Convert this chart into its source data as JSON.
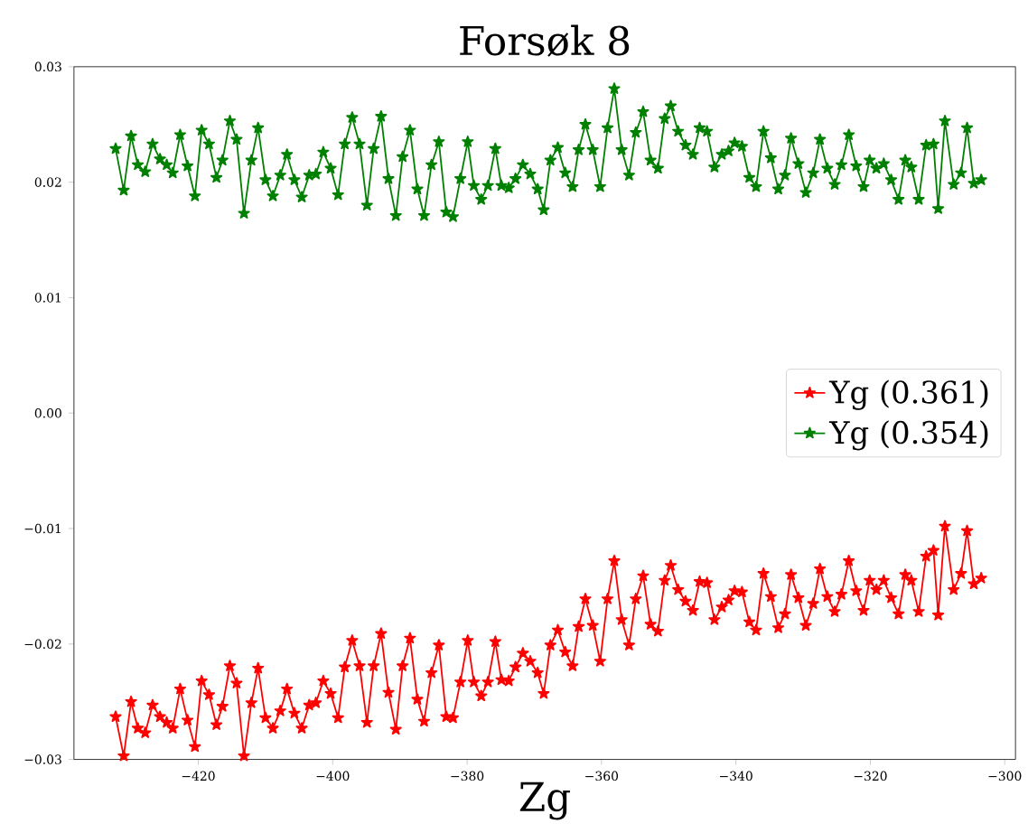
{
  "chart_data": {
    "type": "line",
    "title": "Forsøk 8",
    "xlabel": "Zg",
    "x": [
      -432.3,
      -431.1,
      -430.0,
      -429.0,
      -427.9,
      -426.8,
      -425.7,
      -424.7,
      -423.8,
      -422.7,
      -421.6,
      -420.5,
      -419.5,
      -418.4,
      -417.3,
      -416.4,
      -415.3,
      -414.3,
      -413.2,
      -412.1,
      -411.1,
      -410.0,
      -408.9,
      -407.8,
      -406.8,
      -405.7,
      -404.6,
      -403.5,
      -402.5,
      -401.4,
      -400.3,
      -399.2,
      -398.2,
      -397.1,
      -396.0,
      -394.9,
      -393.9,
      -392.8,
      -391.7,
      -390.6,
      -389.6,
      -388.5,
      -387.4,
      -386.4,
      -385.3,
      -384.2,
      -383.1,
      -382.1,
      -381.0,
      -379.9,
      -379.0,
      -377.9,
      -376.9,
      -375.8,
      -374.9,
      -373.8,
      -372.8,
      -371.7,
      -370.6,
      -369.5,
      -368.6,
      -367.6,
      -366.5,
      -365.4,
      -364.3,
      -363.4,
      -362.4,
      -361.3,
      -360.2,
      -359.1,
      -358.1,
      -357.0,
      -355.9,
      -354.9,
      -353.8,
      -352.7,
      -351.6,
      -350.6,
      -349.7,
      -348.6,
      -347.5,
      -346.4,
      -345.4,
      -344.3,
      -343.2,
      -342.1,
      -341.1,
      -340.2,
      -339.1,
      -338.0,
      -337.0,
      -335.9,
      -334.8,
      -333.7,
      -332.7,
      -331.8,
      -330.7,
      -329.6,
      -328.5,
      -327.5,
      -326.4,
      -325.3,
      -324.3,
      -323.2,
      -322.1,
      -321.0,
      -320.1,
      -319.1,
      -318.0,
      -316.9,
      -315.8,
      -314.8,
      -313.9,
      -312.8,
      -311.7,
      -310.6,
      -309.9,
      -308.9,
      -307.6,
      -306.5,
      -305.6,
      -304.6,
      -303.5
    ],
    "series": [
      {
        "name": "Yg (0.361)",
        "color": "#ff0000",
        "values": [
          -0.0263,
          -0.0297,
          -0.025,
          -0.0273,
          -0.0277,
          -0.0253,
          -0.0263,
          -0.0268,
          -0.0273,
          -0.0239,
          -0.0266,
          -0.0289,
          -0.0232,
          -0.0244,
          -0.027,
          -0.0254,
          -0.0219,
          -0.0234,
          -0.0297,
          -0.0251,
          -0.0221,
          -0.0264,
          -0.0273,
          -0.0258,
          -0.0239,
          -0.026,
          -0.0273,
          -0.0253,
          -0.0251,
          -0.0232,
          -0.0243,
          -0.0264,
          -0.022,
          -0.0197,
          -0.0219,
          -0.0268,
          -0.0219,
          -0.0191,
          -0.0242,
          -0.0274,
          -0.0219,
          -0.0195,
          -0.0248,
          -0.0267,
          -0.0225,
          -0.0201,
          -0.0263,
          -0.0264,
          -0.0233,
          -0.0197,
          -0.0233,
          -0.0245,
          -0.0233,
          -0.0198,
          -0.0231,
          -0.0232,
          -0.022,
          -0.0208,
          -0.0215,
          -0.0225,
          -0.0243,
          -0.0201,
          -0.0188,
          -0.0207,
          -0.0219,
          -0.0185,
          -0.0161,
          -0.0184,
          -0.0215,
          -0.0161,
          -0.0128,
          -0.0179,
          -0.0201,
          -0.0161,
          -0.0141,
          -0.0183,
          -0.0189,
          -0.0145,
          -0.0132,
          -0.0153,
          -0.0163,
          -0.0171,
          -0.0146,
          -0.0147,
          -0.0179,
          -0.0168,
          -0.0162,
          -0.0154,
          -0.0155,
          -0.0181,
          -0.0188,
          -0.0139,
          -0.0159,
          -0.0186,
          -0.0174,
          -0.014,
          -0.016,
          -0.0184,
          -0.0165,
          -0.0135,
          -0.0159,
          -0.0172,
          -0.0157,
          -0.0128,
          -0.0154,
          -0.0171,
          -0.0145,
          -0.0153,
          -0.0145,
          -0.016,
          -0.0174,
          -0.014,
          -0.0145,
          -0.0172,
          -0.0124,
          -0.0119,
          -0.0175,
          -0.0098,
          -0.0153,
          -0.0139,
          -0.0102,
          -0.0148,
          -0.0143
        ]
      },
      {
        "name": "Yg (0.354)",
        "color": "#008000",
        "values": [
          0.0229,
          0.0193,
          0.024,
          0.0215,
          0.0209,
          0.0233,
          0.022,
          0.0215,
          0.0208,
          0.0241,
          0.0214,
          0.0188,
          0.0245,
          0.0233,
          0.0204,
          0.0219,
          0.0253,
          0.0237,
          0.0173,
          0.0219,
          0.0247,
          0.0202,
          0.0188,
          0.0206,
          0.0224,
          0.0202,
          0.0187,
          0.0206,
          0.0207,
          0.0226,
          0.0212,
          0.0189,
          0.0233,
          0.0256,
          0.0233,
          0.018,
          0.0229,
          0.0257,
          0.0203,
          0.0171,
          0.0222,
          0.0245,
          0.0194,
          0.0171,
          0.0215,
          0.0235,
          0.0174,
          0.017,
          0.0203,
          0.0235,
          0.0197,
          0.0185,
          0.0197,
          0.0229,
          0.0197,
          0.0195,
          0.0203,
          0.0215,
          0.0207,
          0.0194,
          0.0176,
          0.0219,
          0.023,
          0.0208,
          0.0196,
          0.0228,
          0.025,
          0.0228,
          0.0196,
          0.0247,
          0.0281,
          0.0228,
          0.0206,
          0.0243,
          0.0261,
          0.0219,
          0.0212,
          0.0255,
          0.0266,
          0.0244,
          0.0232,
          0.0224,
          0.0247,
          0.0244,
          0.0213,
          0.0224,
          0.0227,
          0.0234,
          0.0231,
          0.0204,
          0.0196,
          0.0244,
          0.0221,
          0.0194,
          0.0206,
          0.0238,
          0.0216,
          0.0191,
          0.0208,
          0.0237,
          0.0212,
          0.0198,
          0.0215,
          0.0241,
          0.0214,
          0.0196,
          0.0219,
          0.0212,
          0.0216,
          0.0202,
          0.0185,
          0.0219,
          0.0213,
          0.0185,
          0.0232,
          0.0233,
          0.0177,
          0.0253,
          0.0198,
          0.0208,
          0.0247,
          0.0199,
          0.0202
        ]
      }
    ],
    "xlim": [
      -438.5,
      -298.4
    ],
    "xticks": [
      {
        "value": -420,
        "label": "−420"
      },
      {
        "value": -400,
        "label": "−400"
      },
      {
        "value": -380,
        "label": "−380"
      },
      {
        "value": -360,
        "label": "−360"
      },
      {
        "value": -340,
        "label": "−340"
      },
      {
        "value": -320,
        "label": "−320"
      },
      {
        "value": -300,
        "label": "−300"
      }
    ],
    "ylim": [
      -0.03,
      0.03
    ],
    "yticks": [
      {
        "value": -0.03,
        "label": "−0.03"
      },
      {
        "value": -0.02,
        "label": "−0.02"
      },
      {
        "value": -0.01,
        "label": "−0.01"
      },
      {
        "value": 0,
        "label": "0.00"
      },
      {
        "value": 0.01,
        "label": "0.01"
      },
      {
        "value": 0.02,
        "label": "0.02"
      },
      {
        "value": 0.03,
        "label": "0.03"
      }
    ],
    "legend": "right",
    "marker": "star",
    "line_style": "solid"
  }
}
